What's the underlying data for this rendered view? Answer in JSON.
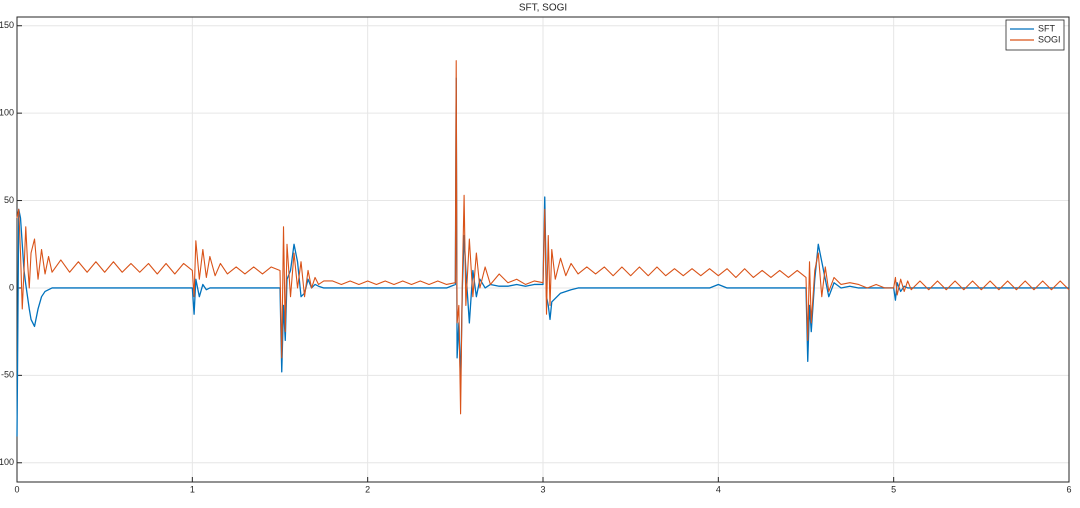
{
  "chart_data": {
    "type": "line",
    "title": "SFT, SOGI",
    "x": [
      0,
      0.01,
      0.02,
      0.03,
      0.04,
      0.05,
      0.06,
      0.07,
      0.08,
      0.1,
      0.12,
      0.14,
      0.16,
      0.18,
      0.2,
      0.25,
      0.3,
      0.35,
      0.4,
      0.45,
      0.5,
      0.55,
      0.6,
      0.65,
      0.7,
      0.75,
      0.8,
      0.85,
      0.9,
      0.95,
      1.0,
      1.01,
      1.02,
      1.04,
      1.06,
      1.08,
      1.1,
      1.13,
      1.16,
      1.2,
      1.25,
      1.3,
      1.35,
      1.4,
      1.45,
      1.5,
      1.51,
      1.52,
      1.53,
      1.54,
      1.56,
      1.58,
      1.6,
      1.62,
      1.64,
      1.66,
      1.68,
      1.7,
      1.72,
      1.75,
      1.8,
      1.85,
      1.9,
      1.95,
      2.0,
      2.05,
      2.1,
      2.15,
      2.2,
      2.25,
      2.3,
      2.35,
      2.4,
      2.45,
      2.5,
      2.505,
      2.51,
      2.52,
      2.53,
      2.54,
      2.55,
      2.56,
      2.58,
      2.6,
      2.62,
      2.64,
      2.67,
      2.7,
      2.75,
      2.8,
      2.85,
      2.9,
      2.95,
      3.0,
      3.01,
      3.02,
      3.03,
      3.04,
      3.05,
      3.07,
      3.1,
      3.13,
      3.16,
      3.2,
      3.25,
      3.3,
      3.35,
      3.4,
      3.45,
      3.5,
      3.55,
      3.6,
      3.65,
      3.7,
      3.75,
      3.8,
      3.85,
      3.9,
      3.95,
      4.0,
      4.05,
      4.1,
      4.15,
      4.2,
      4.25,
      4.3,
      4.35,
      4.4,
      4.45,
      4.5,
      4.51,
      4.52,
      4.53,
      4.55,
      4.57,
      4.59,
      4.61,
      4.63,
      4.66,
      4.7,
      4.75,
      4.8,
      4.85,
      4.9,
      4.95,
      5.0,
      5.01,
      5.02,
      5.04,
      5.06,
      5.08,
      5.1,
      5.15,
      5.2,
      5.25,
      5.3,
      5.35,
      5.4,
      5.45,
      5.5,
      5.55,
      5.6,
      5.65,
      5.7,
      5.75,
      5.8,
      5.85,
      5.9,
      5.95,
      6.0
    ],
    "series": [
      {
        "name": "SFT",
        "color": "#0072BD",
        "values": [
          -85,
          45,
          40,
          25,
          10,
          2,
          -5,
          -12,
          -18,
          -22,
          -12,
          -5,
          -2,
          -1,
          0,
          0,
          0,
          0,
          0,
          0,
          0,
          0,
          0,
          0,
          0,
          0,
          0,
          0,
          0,
          0,
          0,
          -15,
          5,
          -5,
          2,
          -1,
          0,
          0,
          0,
          0,
          0,
          0,
          0,
          0,
          0,
          0,
          -48,
          -10,
          -30,
          5,
          10,
          25,
          15,
          -5,
          -3,
          5,
          0,
          2,
          1,
          0,
          0,
          0,
          0,
          0,
          0,
          0,
          0,
          0,
          0,
          0,
          0,
          0,
          0,
          0,
          2,
          120,
          -40,
          -20,
          -55,
          0,
          30,
          10,
          -20,
          10,
          -5,
          5,
          0,
          2,
          1,
          1,
          2,
          1,
          2,
          2,
          52,
          -5,
          -10,
          -18,
          -8,
          -6,
          -3,
          -2,
          -1,
          0,
          0,
          0,
          0,
          0,
          0,
          0,
          0,
          0,
          0,
          0,
          0,
          0,
          0,
          0,
          0,
          2,
          0,
          0,
          0,
          0,
          0,
          0,
          0,
          0,
          0,
          0,
          -42,
          -10,
          -25,
          5,
          25,
          15,
          5,
          -5,
          3,
          0,
          1,
          0,
          0,
          0,
          0,
          0,
          -7,
          3,
          -2,
          1,
          0,
          0,
          0,
          0,
          0,
          0,
          0,
          0,
          0,
          0,
          0,
          0,
          0,
          0,
          0,
          0,
          0,
          0,
          0,
          0
        ]
      },
      {
        "name": "SOGI",
        "color": "#D95319",
        "values": [
          40,
          45,
          20,
          -12,
          10,
          35,
          15,
          0,
          20,
          28,
          5,
          22,
          8,
          18,
          9,
          16,
          9,
          15,
          9,
          15,
          9,
          15,
          9,
          14,
          9,
          14,
          8,
          14,
          8,
          14,
          10,
          -5,
          27,
          5,
          22,
          6,
          18,
          7,
          14,
          8,
          12,
          8,
          12,
          8,
          12,
          10,
          -40,
          35,
          -25,
          25,
          -5,
          20,
          0,
          15,
          -5,
          10,
          0,
          6,
          2,
          4,
          4,
          2,
          4,
          2,
          4,
          2,
          4,
          2,
          4,
          2,
          4,
          2,
          4,
          2,
          3,
          130,
          -20,
          -10,
          -72,
          5,
          53,
          -10,
          28,
          -5,
          20,
          0,
          12,
          2,
          8,
          3,
          5,
          2,
          4,
          3,
          45,
          -15,
          30,
          -10,
          22,
          5,
          17,
          7,
          14,
          8,
          12,
          8,
          12,
          7,
          12,
          7,
          12,
          7,
          12,
          7,
          11,
          7,
          11,
          7,
          11,
          7,
          11,
          6,
          11,
          6,
          10,
          6,
          10,
          6,
          10,
          6,
          -30,
          15,
          -20,
          10,
          20,
          -5,
          12,
          -2,
          6,
          2,
          3,
          2,
          0,
          2,
          0,
          0,
          6,
          -4,
          5,
          -2,
          4,
          -1,
          4,
          -1,
          4,
          -1,
          4,
          -1,
          4,
          -1,
          4,
          -1,
          4,
          -1,
          4,
          -1,
          4,
          -1,
          4,
          -1
        ]
      }
    ],
    "xlim": [
      0,
      6
    ],
    "xticks": [
      0,
      1,
      2,
      3,
      4,
      5,
      6
    ],
    "ylim": [
      -111,
      155
    ],
    "yticks": [
      -100,
      -50,
      0,
      50,
      100,
      150
    ],
    "grid": true,
    "legend": "top-right"
  }
}
